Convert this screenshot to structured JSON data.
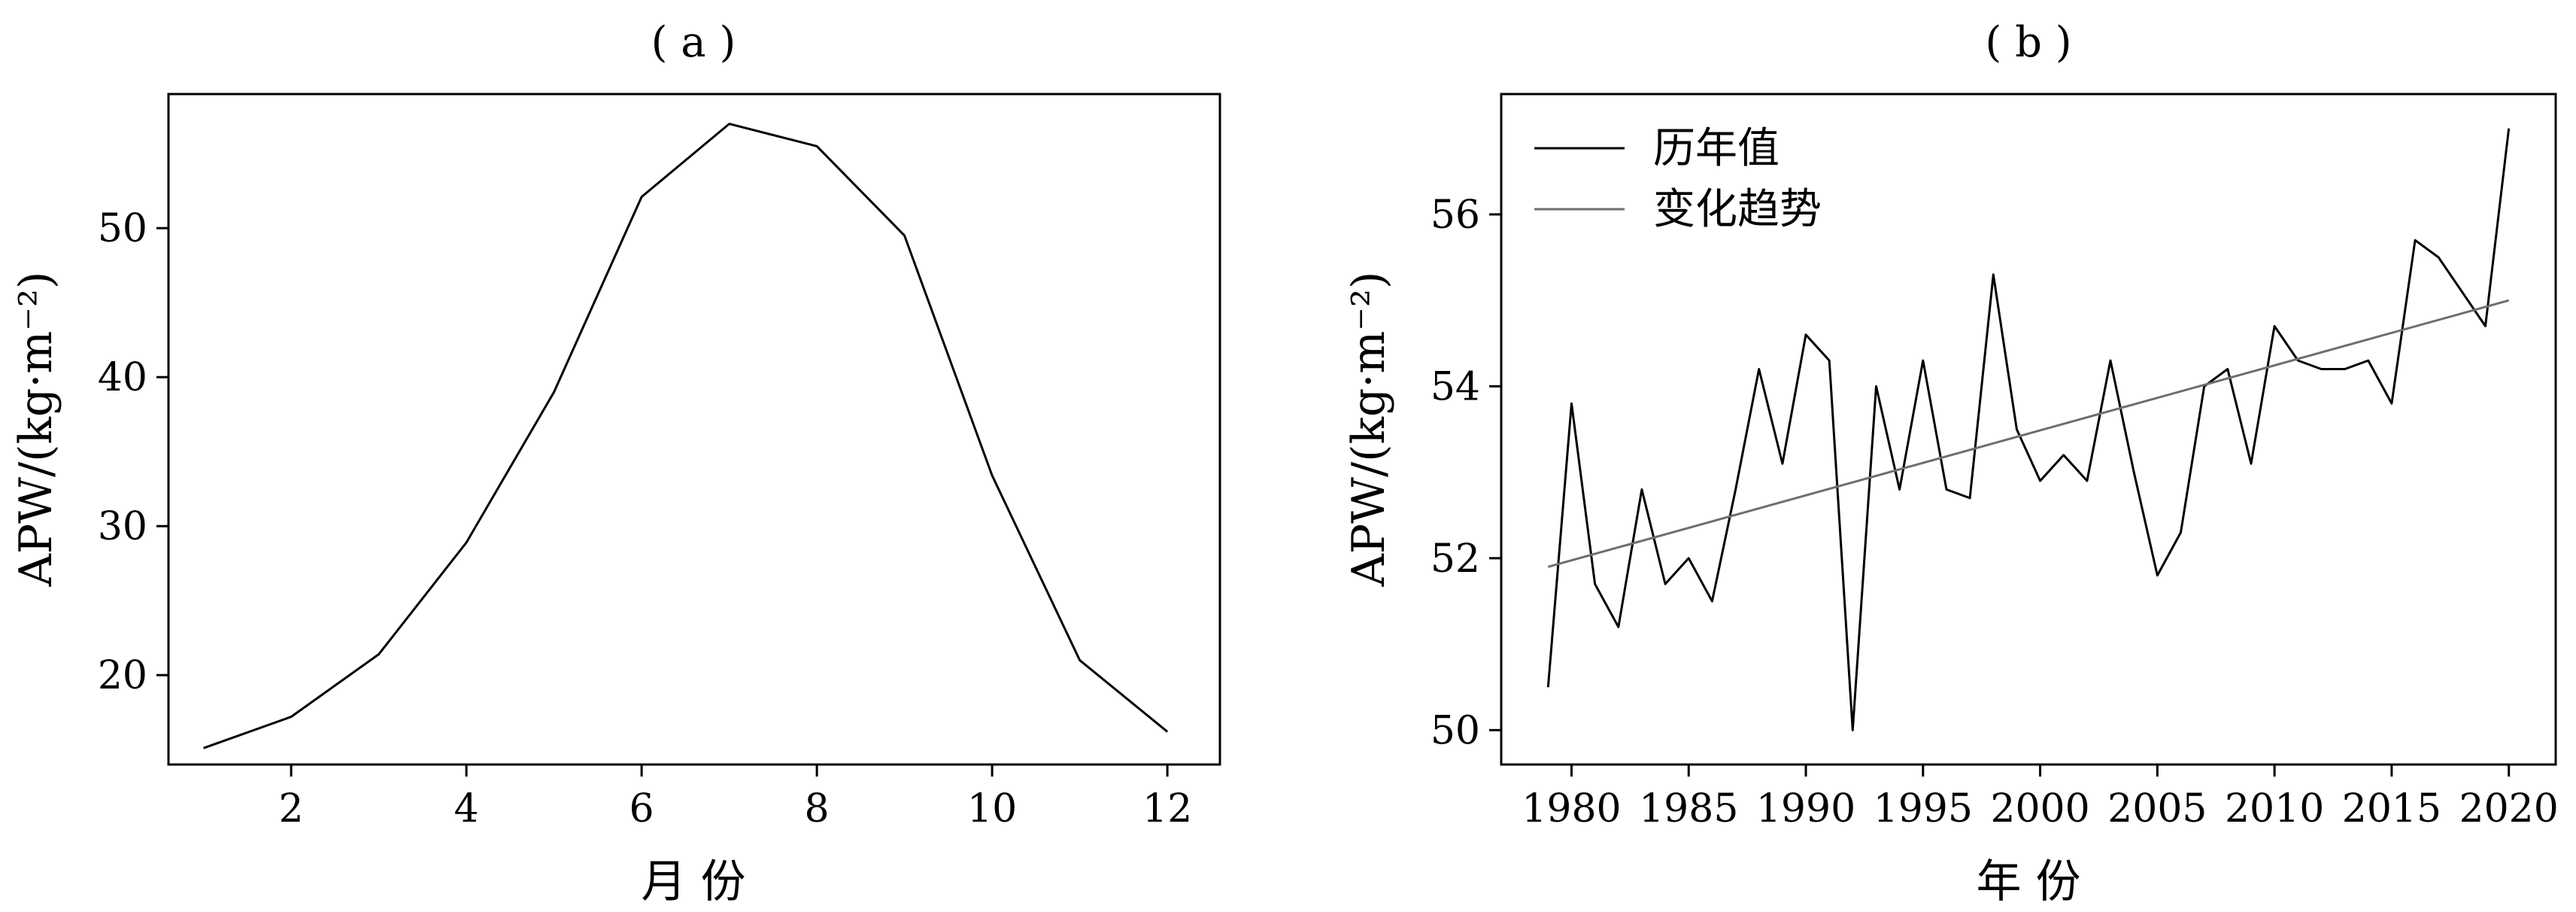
{
  "chart_data": [
    {
      "type": "line",
      "panel_label": "( a )",
      "xlabel": "月 份",
      "ylabel": "APW/(kg·m⁻²)",
      "xlim": [
        0.6,
        12.6
      ],
      "ylim": [
        14,
        59
      ],
      "xticks": [
        2,
        4,
        6,
        8,
        10,
        12
      ],
      "yticks": [
        20,
        30,
        40,
        50
      ],
      "grid": false,
      "series": [
        {
          "color": "#000000",
          "x": [
            1,
            2,
            3,
            4,
            5,
            6,
            7,
            8,
            9,
            10,
            11,
            12
          ],
          "y": [
            15.1,
            17.2,
            21.4,
            28.9,
            39.0,
            52.1,
            57.0,
            55.5,
            49.5,
            33.4,
            21.0,
            16.2
          ]
        }
      ]
    },
    {
      "type": "line",
      "panel_label": "( b )",
      "xlabel": "年 份",
      "ylabel": "APW/(kg·m⁻²)",
      "xlim": [
        1977,
        2022
      ],
      "ylim": [
        49.6,
        57.4
      ],
      "xticks": [
        1980,
        1985,
        1990,
        1995,
        2000,
        2005,
        2010,
        2015,
        2020
      ],
      "yticks": [
        50,
        52,
        54,
        56
      ],
      "grid": false,
      "legend_position": "top-left",
      "series": [
        {
          "name": "历年值",
          "color": "#000000",
          "x": [
            1979,
            1980,
            1981,
            1982,
            1983,
            1984,
            1985,
            1986,
            1987,
            1988,
            1989,
            1990,
            1991,
            1992,
            1993,
            1994,
            1995,
            1996,
            1997,
            1998,
            1999,
            2000,
            2001,
            2002,
            2003,
            2004,
            2005,
            2006,
            2007,
            2008,
            2009,
            2010,
            2011,
            2012,
            2013,
            2014,
            2015,
            2016,
            2017,
            2018,
            2019,
            2020
          ],
          "y": [
            50.5,
            53.8,
            51.7,
            51.2,
            52.8,
            51.7,
            52.0,
            51.5,
            52.8,
            54.2,
            53.1,
            54.6,
            54.3,
            50.0,
            54.0,
            52.8,
            54.3,
            52.8,
            52.7,
            55.3,
            53.5,
            52.9,
            53.2,
            52.9,
            54.3,
            53.0,
            51.8,
            52.3,
            54.0,
            54.2,
            53.1,
            54.7,
            54.3,
            54.2,
            54.2,
            54.3,
            53.8,
            55.7,
            55.5,
            55.1,
            54.7,
            57.0
          ]
        },
        {
          "name": "变化趋势",
          "color": "#6e6e6e",
          "x": [
            1979,
            2020
          ],
          "y": [
            51.9,
            55.0
          ]
        }
      ]
    }
  ]
}
